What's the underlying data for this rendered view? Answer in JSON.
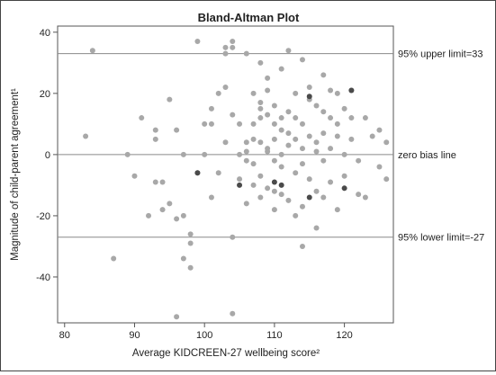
{
  "chart_data": {
    "type": "scatter",
    "title": "Bland-Altman Plot",
    "xlabel": "Average KIDCREEN-27 wellbeing score²",
    "ylabel": "Magnitude of child-parent agreement¹",
    "xlim": [
      79,
      127
    ],
    "ylim": [
      -55,
      42
    ],
    "xticks": [
      80,
      90,
      100,
      110,
      120
    ],
    "yticks": [
      40,
      20,
      0,
      -20,
      -40
    ],
    "grid": false,
    "reference_lines": [
      {
        "label": "95% upper limit=33",
        "y": 33
      },
      {
        "label": "zero bias line",
        "y": 0
      },
      {
        "label": "95% lower limit=-27",
        "y": -27
      }
    ],
    "colors": {
      "points": "#a8a8a8",
      "highlighted_points": "#4a4a4a",
      "reference_lines": "#8a8a8a"
    },
    "series": [
      {
        "points": [
          [
            84,
            34
          ],
          [
            83,
            6
          ],
          [
            87,
            -34
          ],
          [
            89,
            0
          ],
          [
            90,
            -7
          ],
          [
            91,
            12
          ],
          [
            92,
            -20
          ],
          [
            93,
            8
          ],
          [
            93,
            5
          ],
          [
            94,
            -18
          ],
          [
            93,
            -9
          ],
          [
            95,
            18
          ],
          [
            95,
            -16
          ],
          [
            96,
            -21
          ],
          [
            96,
            8
          ],
          [
            96,
            -53
          ],
          [
            97,
            -34
          ],
          [
            97,
            0
          ],
          [
            98,
            -26
          ],
          [
            98,
            -29
          ],
          [
            99,
            37
          ],
          [
            98,
            -37
          ],
          [
            99,
            -6
          ],
          [
            100,
            0
          ],
          [
            100,
            10
          ],
          [
            101,
            15
          ],
          [
            101,
            10
          ],
          [
            101,
            -14
          ],
          [
            102,
            20
          ],
          [
            103,
            35
          ],
          [
            103,
            33
          ],
          [
            103,
            22
          ],
          [
            103,
            4
          ],
          [
            104,
            37
          ],
          [
            104,
            35
          ],
          [
            104,
            13
          ],
          [
            104,
            -27
          ],
          [
            104,
            -52
          ],
          [
            105,
            10
          ],
          [
            105,
            0
          ],
          [
            106,
            33
          ],
          [
            106,
            -2
          ],
          [
            106,
            -16
          ],
          [
            106,
            4
          ],
          [
            106,
            1
          ],
          [
            107,
            20
          ],
          [
            107,
            10
          ],
          [
            107,
            5
          ],
          [
            107,
            -3
          ],
          [
            108,
            30
          ],
          [
            108,
            17
          ],
          [
            108,
            15
          ],
          [
            108,
            12
          ],
          [
            108,
            4
          ],
          [
            108,
            -7
          ],
          [
            108,
            -14
          ],
          [
            109,
            25
          ],
          [
            109,
            21
          ],
          [
            109,
            13
          ],
          [
            109,
            1
          ],
          [
            109,
            -11
          ],
          [
            110,
            16
          ],
          [
            110,
            10
          ],
          [
            110,
            5
          ],
          [
            110,
            -2
          ],
          [
            110,
            -12
          ],
          [
            111,
            28
          ],
          [
            111,
            12
          ],
          [
            111,
            8
          ],
          [
            111,
            0
          ],
          [
            111,
            -4
          ],
          [
            111,
            -13
          ],
          [
            112,
            34
          ],
          [
            112,
            14
          ],
          [
            112,
            7
          ],
          [
            112,
            3
          ],
          [
            112,
            -15
          ],
          [
            113,
            20
          ],
          [
            113,
            12
          ],
          [
            113,
            5
          ],
          [
            113,
            -6
          ],
          [
            114,
            31
          ],
          [
            114,
            10
          ],
          [
            114,
            2
          ],
          [
            114,
            -17
          ],
          [
            114,
            -3
          ],
          [
            115,
            22
          ],
          [
            115,
            18
          ],
          [
            115,
            6
          ],
          [
            115,
            -8
          ],
          [
            116,
            16
          ],
          [
            116,
            4
          ],
          [
            116,
            1
          ],
          [
            116,
            -12
          ],
          [
            117,
            26
          ],
          [
            117,
            14
          ],
          [
            117,
            7
          ],
          [
            117,
            -2
          ],
          [
            117,
            -14
          ],
          [
            118,
            21
          ],
          [
            118,
            12
          ],
          [
            118,
            2
          ],
          [
            118,
            -9
          ],
          [
            119,
            20
          ],
          [
            119,
            10
          ],
          [
            119,
            6
          ],
          [
            119,
            -18
          ],
          [
            120,
            15
          ],
          [
            120,
            0
          ],
          [
            120,
            -7
          ],
          [
            121,
            21
          ],
          [
            121,
            12
          ],
          [
            121,
            5
          ],
          [
            122,
            -2
          ],
          [
            122,
            -13
          ],
          [
            123,
            12
          ],
          [
            124,
            6
          ],
          [
            125,
            8
          ],
          [
            125,
            -4
          ],
          [
            126,
            4
          ],
          [
            126,
            -8
          ],
          [
            123,
            -14
          ],
          [
            116,
            -24
          ],
          [
            114,
            -30
          ],
          [
            113,
            -20
          ],
          [
            110,
            -18
          ],
          [
            109,
            2
          ],
          [
            107,
            -10
          ],
          [
            105,
            -8
          ],
          [
            102,
            -6
          ],
          [
            97,
            -20
          ],
          [
            94,
            -9
          ]
        ]
      },
      {
        "points": [
          [
            99,
            -6
          ],
          [
            105,
            -10
          ],
          [
            110,
            -9
          ],
          [
            111,
            -10
          ],
          [
            115,
            19
          ],
          [
            115,
            -14
          ],
          [
            120,
            -11
          ],
          [
            121,
            21
          ]
        ]
      }
    ]
  }
}
